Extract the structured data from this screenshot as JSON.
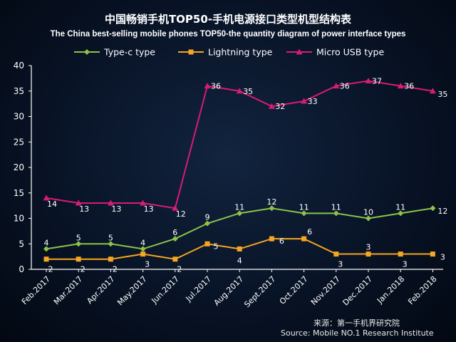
{
  "chart_data": {
    "type": "line",
    "title": "中国畅销手机TOP50-手机电源接口类型机型结构表",
    "subtitle": "The China best-selling mobile phones TOP50-the quantity diagram of power interface types",
    "categories": [
      "Feb.2017",
      "Mar.2017",
      "Apr.2017",
      "May.2017",
      "Jun.2017",
      "Jul.2017",
      "Aug.2017",
      "Sept.2017",
      "Oct.2017",
      "Nov.2017",
      "Dec.2017",
      "Jan.2018",
      "Feb.2018"
    ],
    "series": [
      {
        "name": "Type-c type",
        "color": "#8bc34a",
        "marker": "diamond",
        "values": [
          4,
          5,
          5,
          4,
          6,
          9,
          11,
          12,
          11,
          11,
          10,
          11,
          12
        ]
      },
      {
        "name": "Lightning type",
        "color": "#f5a623",
        "marker": "square",
        "values": [
          2,
          2,
          2,
          3,
          2,
          5,
          4,
          6,
          6,
          3,
          3,
          3,
          3
        ]
      },
      {
        "name": "Micro USB type",
        "color": "#d81b75",
        "marker": "triangle",
        "values": [
          14,
          13,
          13,
          13,
          12,
          36,
          35,
          32,
          33,
          36,
          37,
          36,
          35
        ]
      }
    ],
    "y_ticks": [
      "0",
      "5",
      "10",
      "15",
      "20",
      "25",
      "30",
      "35",
      "40"
    ],
    "ylim": [
      0,
      40
    ],
    "legend_position": "top",
    "source_zh": "来源：第一手机界研究院",
    "source_en": "Source: Mobile NO.1 Research Institute"
  }
}
